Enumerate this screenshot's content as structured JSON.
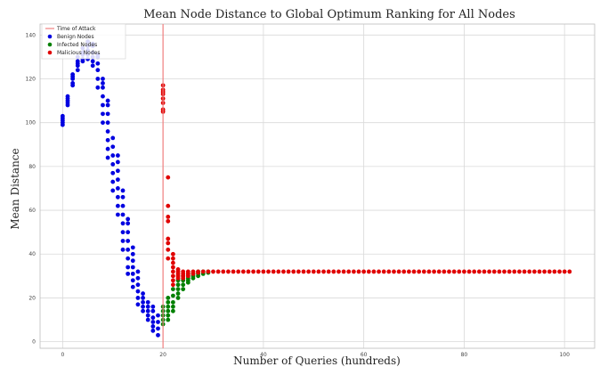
{
  "chart_data": {
    "type": "scatter",
    "title": "Mean Node Distance to Global Optimum Ranking for All Nodes",
    "xlabel": "Number of Queries (hundreds)",
    "ylabel": "Mean Distance",
    "xlim": [
      -4.5,
      106
    ],
    "ylim": [
      -3,
      145
    ],
    "xticks": [
      0,
      20,
      40,
      60,
      80,
      100
    ],
    "yticks": [
      0,
      20,
      40,
      60,
      80,
      100,
      120,
      140
    ],
    "grid": true,
    "legend_position": "top-left",
    "attack_line": {
      "name": "Time of Attack",
      "x": 20,
      "color": "#f08080"
    },
    "series": [
      {
        "name": "Benign Nodes",
        "color": "#0000e0",
        "points": [
          [
            0,
            99
          ],
          [
            0,
            100
          ],
          [
            0,
            101
          ],
          [
            0,
            102
          ],
          [
            0,
            103
          ],
          [
            1,
            108
          ],
          [
            1,
            109
          ],
          [
            1,
            110
          ],
          [
            1,
            111
          ],
          [
            1,
            112
          ],
          [
            2,
            117
          ],
          [
            2,
            118
          ],
          [
            2,
            120
          ],
          [
            2,
            121
          ],
          [
            2,
            122
          ],
          [
            3,
            124
          ],
          [
            3,
            126
          ],
          [
            3,
            127
          ],
          [
            3,
            128
          ],
          [
            3,
            130
          ],
          [
            4,
            128
          ],
          [
            4,
            129
          ],
          [
            4,
            131
          ],
          [
            4,
            132
          ],
          [
            4,
            134
          ],
          [
            5,
            129
          ],
          [
            5,
            131
          ],
          [
            5,
            133
          ],
          [
            5,
            135
          ],
          [
            5,
            137
          ],
          [
            6,
            126
          ],
          [
            6,
            128
          ],
          [
            6,
            130
          ],
          [
            6,
            132
          ],
          [
            6,
            135
          ],
          [
            6,
            136
          ],
          [
            7,
            116
          ],
          [
            7,
            120
          ],
          [
            7,
            124
          ],
          [
            7,
            127
          ],
          [
            7,
            130
          ],
          [
            7,
            131
          ],
          [
            8,
            100
          ],
          [
            8,
            104
          ],
          [
            8,
            108
          ],
          [
            8,
            112
          ],
          [
            8,
            116
          ],
          [
            8,
            118
          ],
          [
            8,
            120
          ],
          [
            9,
            84
          ],
          [
            9,
            88
          ],
          [
            9,
            92
          ],
          [
            9,
            96
          ],
          [
            9,
            100
          ],
          [
            9,
            104
          ],
          [
            9,
            108
          ],
          [
            9,
            110
          ],
          [
            10,
            69
          ],
          [
            10,
            73
          ],
          [
            10,
            77
          ],
          [
            10,
            81
          ],
          [
            10,
            85
          ],
          [
            10,
            89
          ],
          [
            10,
            93
          ],
          [
            11,
            58
          ],
          [
            11,
            62
          ],
          [
            11,
            66
          ],
          [
            11,
            70
          ],
          [
            11,
            74
          ],
          [
            11,
            78
          ],
          [
            11,
            82
          ],
          [
            11,
            85
          ],
          [
            12,
            42
          ],
          [
            12,
            46
          ],
          [
            12,
            50
          ],
          [
            12,
            54
          ],
          [
            12,
            58
          ],
          [
            12,
            62
          ],
          [
            12,
            66
          ],
          [
            12,
            69
          ],
          [
            13,
            31
          ],
          [
            13,
            34
          ],
          [
            13,
            38
          ],
          [
            13,
            42
          ],
          [
            13,
            46
          ],
          [
            13,
            50
          ],
          [
            13,
            54
          ],
          [
            13,
            56
          ],
          [
            14,
            25
          ],
          [
            14,
            28
          ],
          [
            14,
            31
          ],
          [
            14,
            34
          ],
          [
            14,
            37
          ],
          [
            14,
            40
          ],
          [
            14,
            43
          ],
          [
            15,
            17
          ],
          [
            15,
            20
          ],
          [
            15,
            23
          ],
          [
            15,
            26
          ],
          [
            15,
            29
          ],
          [
            15,
            32
          ],
          [
            16,
            14
          ],
          [
            16,
            16
          ],
          [
            16,
            18
          ],
          [
            16,
            20
          ],
          [
            16,
            22
          ],
          [
            17,
            10
          ],
          [
            17,
            12
          ],
          [
            17,
            14
          ],
          [
            17,
            16
          ],
          [
            17,
            18
          ],
          [
            18,
            5
          ],
          [
            18,
            7
          ],
          [
            18,
            9
          ],
          [
            18,
            11
          ],
          [
            18,
            14
          ],
          [
            18,
            16
          ],
          [
            19,
            3
          ],
          [
            19,
            6
          ],
          [
            19,
            9
          ],
          [
            19,
            12
          ]
        ]
      },
      {
        "name": "Infected Nodes",
        "color": "#008000",
        "points": [
          [
            20,
            8
          ],
          [
            20,
            10
          ],
          [
            20,
            12
          ],
          [
            20,
            14
          ],
          [
            20,
            16
          ],
          [
            21,
            10
          ],
          [
            21,
            12
          ],
          [
            21,
            14
          ],
          [
            21,
            16
          ],
          [
            21,
            18
          ],
          [
            21,
            20
          ],
          [
            22,
            14
          ],
          [
            22,
            16
          ],
          [
            22,
            18
          ],
          [
            22,
            21
          ],
          [
            22,
            24
          ],
          [
            23,
            20
          ],
          [
            23,
            22
          ],
          [
            23,
            24
          ],
          [
            23,
            26
          ],
          [
            23,
            28
          ],
          [
            24,
            24
          ],
          [
            24,
            26
          ],
          [
            24,
            28
          ],
          [
            24,
            30
          ],
          [
            25,
            27
          ],
          [
            25,
            28
          ],
          [
            25,
            29
          ],
          [
            25,
            30
          ],
          [
            25,
            31
          ],
          [
            26,
            29
          ],
          [
            26,
            30
          ],
          [
            26,
            31
          ],
          [
            27,
            30
          ],
          [
            27,
            31
          ],
          [
            27,
            32
          ],
          [
            28,
            31
          ],
          [
            28,
            32
          ],
          [
            29,
            31.5
          ],
          [
            29,
            32
          ]
        ]
      },
      {
        "name": "Malicious Nodes",
        "color": "#e00000",
        "points": [
          [
            20,
            105
          ],
          [
            20,
            106
          ],
          [
            20,
            109
          ],
          [
            20,
            111
          ],
          [
            20,
            113
          ],
          [
            20,
            114
          ],
          [
            20,
            115
          ],
          [
            20,
            117
          ],
          [
            21,
            75
          ],
          [
            21,
            62
          ],
          [
            21,
            57
          ],
          [
            21,
            55
          ],
          [
            21,
            47
          ],
          [
            21,
            45
          ],
          [
            21,
            42
          ],
          [
            21,
            38
          ],
          [
            22,
            40
          ],
          [
            22,
            38
          ],
          [
            22,
            36
          ],
          [
            22,
            34
          ],
          [
            22,
            32
          ],
          [
            22,
            30
          ],
          [
            22,
            28
          ],
          [
            22,
            26
          ],
          [
            23,
            33
          ],
          [
            23,
            32
          ],
          [
            23,
            31
          ],
          [
            23,
            30
          ],
          [
            23,
            29
          ],
          [
            24,
            32
          ],
          [
            24,
            31
          ],
          [
            24,
            30
          ],
          [
            24,
            29
          ],
          [
            25,
            32
          ],
          [
            25,
            31
          ],
          [
            25,
            30
          ],
          [
            26,
            32
          ],
          [
            26,
            31
          ],
          [
            27,
            32
          ],
          [
            27,
            31.5
          ],
          [
            28,
            32
          ],
          [
            29,
            32
          ],
          [
            30,
            32
          ],
          [
            31,
            32
          ],
          [
            32,
            32
          ],
          [
            33,
            32
          ],
          [
            34,
            32
          ],
          [
            35,
            32
          ],
          [
            36,
            32
          ],
          [
            37,
            32
          ],
          [
            38,
            32
          ],
          [
            39,
            32
          ],
          [
            40,
            32
          ],
          [
            41,
            32
          ],
          [
            42,
            32
          ],
          [
            43,
            32
          ],
          [
            44,
            32
          ],
          [
            45,
            32
          ],
          [
            46,
            32
          ],
          [
            47,
            32
          ],
          [
            48,
            32
          ],
          [
            49,
            32
          ],
          [
            50,
            32
          ],
          [
            51,
            32
          ],
          [
            52,
            32
          ],
          [
            53,
            32
          ],
          [
            54,
            32
          ],
          [
            55,
            32
          ],
          [
            56,
            32
          ],
          [
            57,
            32
          ],
          [
            58,
            32
          ],
          [
            59,
            32
          ],
          [
            60,
            32
          ],
          [
            61,
            32
          ],
          [
            62,
            32
          ],
          [
            63,
            32
          ],
          [
            64,
            32
          ],
          [
            65,
            32
          ],
          [
            66,
            32
          ],
          [
            67,
            32
          ],
          [
            68,
            32
          ],
          [
            69,
            32
          ],
          [
            70,
            32
          ],
          [
            71,
            32
          ],
          [
            72,
            32
          ],
          [
            73,
            32
          ],
          [
            74,
            32
          ],
          [
            75,
            32
          ],
          [
            76,
            32
          ],
          [
            77,
            32
          ],
          [
            78,
            32
          ],
          [
            79,
            32
          ],
          [
            80,
            32
          ],
          [
            81,
            32
          ],
          [
            82,
            32
          ],
          [
            83,
            32
          ],
          [
            84,
            32
          ],
          [
            85,
            32
          ],
          [
            86,
            32
          ],
          [
            87,
            32
          ],
          [
            88,
            32
          ],
          [
            89,
            32
          ],
          [
            90,
            32
          ],
          [
            91,
            32
          ],
          [
            92,
            32
          ],
          [
            93,
            32
          ],
          [
            94,
            32
          ],
          [
            95,
            32
          ],
          [
            96,
            32
          ],
          [
            97,
            32
          ],
          [
            98,
            32
          ],
          [
            99,
            32
          ],
          [
            100,
            32
          ],
          [
            101,
            32
          ]
        ]
      }
    ]
  }
}
